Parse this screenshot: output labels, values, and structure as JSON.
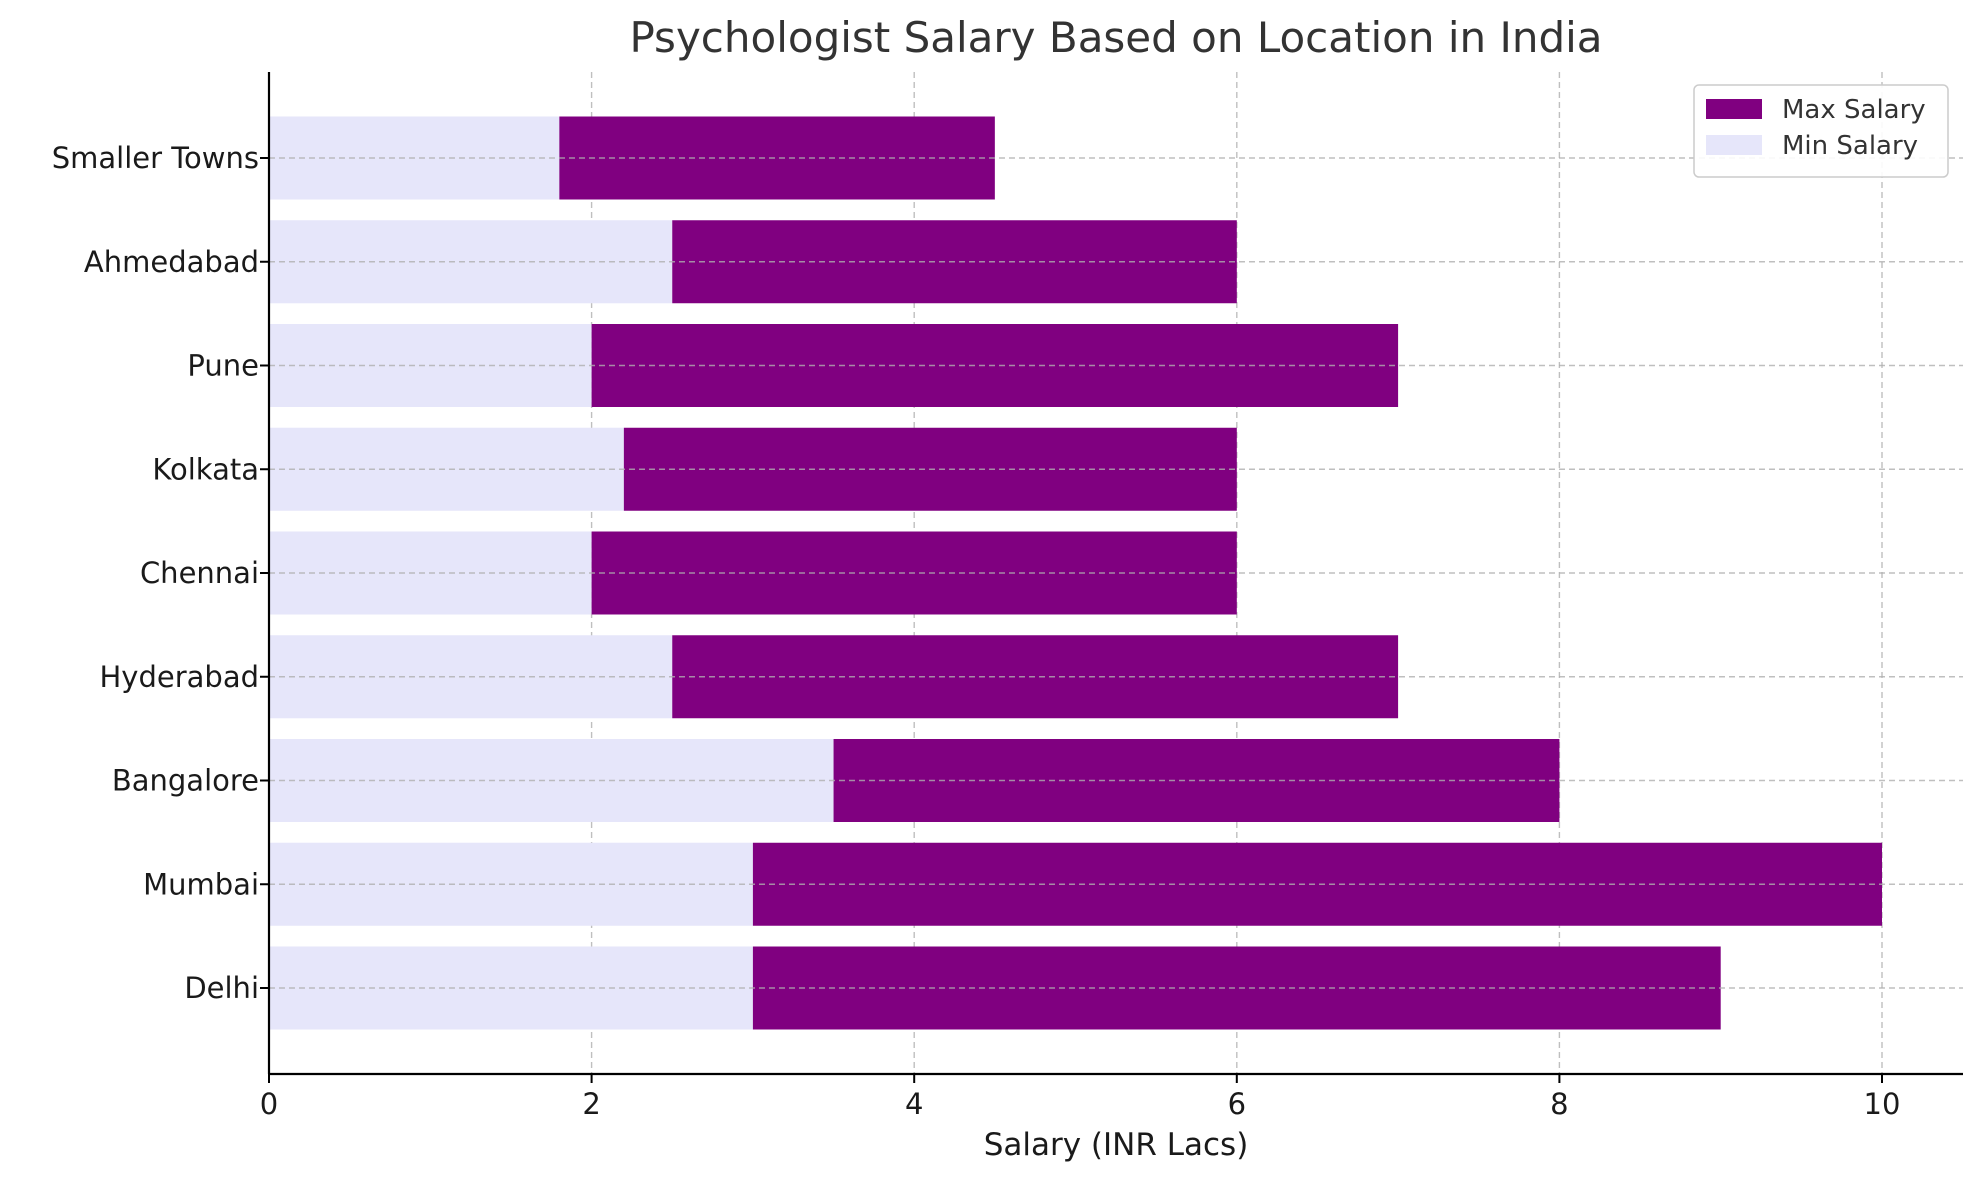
{
  "chart_data": {
    "type": "bar",
    "orientation": "horizontal",
    "title": "Psychologist Salary Based on Location in India",
    "xlabel": "Salary (INR Lacs)",
    "ylabel": "",
    "xlim": [
      0,
      10.5
    ],
    "xticks": [
      0,
      2,
      4,
      6,
      8,
      10
    ],
    "grid": true,
    "legend_position": "top-right",
    "categories": [
      "Delhi",
      "Mumbai",
      "Bangalore",
      "Hyderabad",
      "Chennai",
      "Kolkata",
      "Pune",
      "Ahmedabad",
      "Smaller Towns"
    ],
    "series": [
      {
        "name": "Max Salary",
        "color": "#800080",
        "values": [
          9,
          10,
          8,
          7,
          6,
          6,
          7,
          6,
          4.5
        ]
      },
      {
        "name": "Min Salary",
        "color": "#e6e6fa",
        "values": [
          3,
          3,
          3.5,
          2.5,
          2,
          2.2,
          2,
          2.5,
          1.8
        ]
      }
    ]
  }
}
